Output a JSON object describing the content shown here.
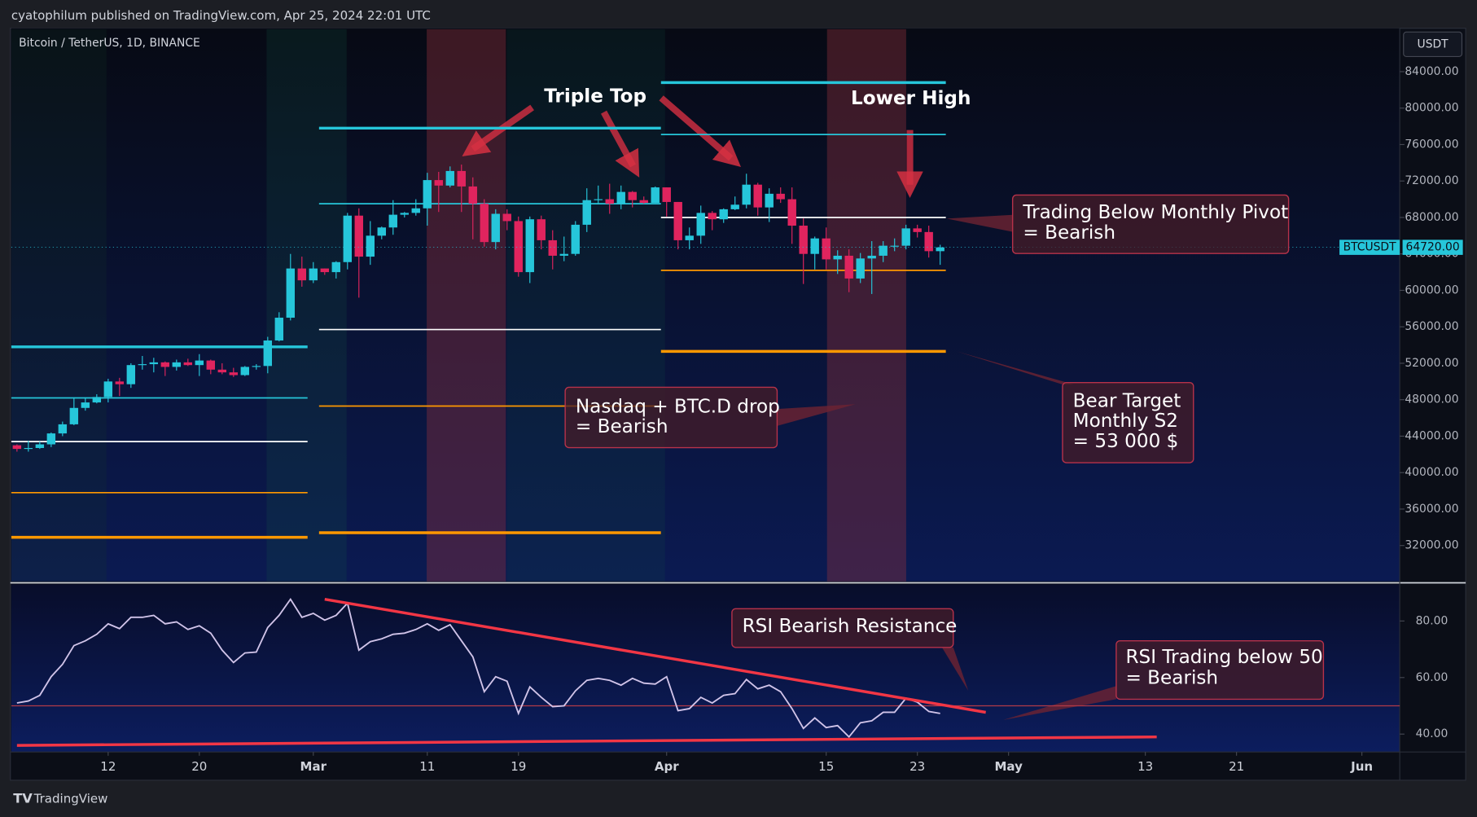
{
  "header": {
    "publisher": "cyatophilum published on TradingView.com, Apr 25, 2024 22:01 UTC",
    "footer": "TradingView"
  },
  "chart_data": [
    {
      "type": "candlestick",
      "title": "Bitcoin / TetherUS, 1D, BINANCE",
      "currency": "USDT",
      "price_tag": {
        "symbol": "BTCUSDT",
        "value": 64720,
        "label": "64720.00"
      },
      "up_color": "#26c6da",
      "down_color": "#e0245e",
      "x": [
        "02-04",
        "02-05",
        "02-06",
        "02-07",
        "02-08",
        "02-09",
        "02-10",
        "02-11",
        "02-12",
        "02-13",
        "02-14",
        "02-15",
        "02-16",
        "02-17",
        "02-18",
        "02-19",
        "02-20",
        "02-21",
        "02-22",
        "02-23",
        "02-24",
        "02-25",
        "02-26",
        "02-27",
        "02-28",
        "02-29",
        "03-01",
        "03-02",
        "03-03",
        "03-04",
        "03-05",
        "03-06",
        "03-07",
        "03-08",
        "03-09",
        "03-10",
        "03-11",
        "03-12",
        "03-13",
        "03-14",
        "03-15",
        "03-16",
        "03-17",
        "03-18",
        "03-19",
        "03-20",
        "03-21",
        "03-22",
        "03-23",
        "03-24",
        "03-25",
        "03-26",
        "03-27",
        "03-28",
        "03-29",
        "03-30",
        "03-31",
        "04-01",
        "04-02",
        "04-03",
        "04-04",
        "04-05",
        "04-06",
        "04-07",
        "04-08",
        "04-09",
        "04-10",
        "04-11",
        "04-12",
        "04-13",
        "04-14",
        "04-15",
        "04-16",
        "04-17",
        "04-18",
        "04-19",
        "04-20",
        "04-21",
        "04-22",
        "04-23",
        "04-24",
        "04-25"
      ],
      "open": [
        43000,
        42600,
        42700,
        43100,
        44300,
        45300,
        47100,
        47700,
        48300,
        50000,
        49700,
        51800,
        51900,
        52100,
        51600,
        52100,
        51800,
        52300,
        51300,
        51000,
        50700,
        51600,
        51700,
        54500,
        57000,
        62400,
        61100,
        62400,
        62000,
        63100,
        68200,
        63700,
        66000,
        66900,
        68300,
        68500,
        69000,
        72100,
        71500,
        73100,
        71400,
        69500,
        65300,
        68400,
        67600,
        62000,
        67800,
        65500,
        63800,
        64000,
        67200,
        69900,
        70000,
        69500,
        70800,
        69900,
        69600,
        71300,
        69700,
        65500,
        66000,
        68500,
        67800,
        68900,
        69400,
        71600,
        69100,
        70600,
        70000,
        67100,
        64000,
        65700,
        63400,
        63800,
        61300,
        63500,
        63800,
        64900,
        64900,
        66800,
        66400,
        64300
      ],
      "high": [
        43100,
        43500,
        43400,
        44400,
        45600,
        48200,
        48200,
        48600,
        50300,
        50400,
        52000,
        52800,
        52600,
        52200,
        52400,
        52500,
        53000,
        52400,
        52000,
        51500,
        51700,
        51900,
        54900,
        57600,
        64000,
        63700,
        63100,
        62400,
        63200,
        68500,
        69000,
        67600,
        67000,
        69900,
        68600,
        70000,
        72900,
        73000,
        73600,
        73800,
        72400,
        70000,
        68900,
        68900,
        68100,
        68100,
        68200,
        66600,
        65900,
        67600,
        71200,
        71500,
        71700,
        71500,
        70900,
        70300,
        71400,
        71300,
        69700,
        66900,
        69300,
        68700,
        69000,
        70300,
        72800,
        71800,
        71200,
        71300,
        71300,
        67900,
        65900,
        66900,
        64400,
        64500,
        64100,
        65400,
        65400,
        65700,
        67200,
        67200,
        67100,
        65000
      ],
      "low": [
        42300,
        42300,
        42600,
        42800,
        44000,
        45200,
        46800,
        47600,
        47700,
        48400,
        49300,
        51300,
        51000,
        50600,
        51200,
        51700,
        50600,
        50800,
        50800,
        50500,
        50600,
        51300,
        50900,
        54400,
        56700,
        60400,
        60800,
        61700,
        61300,
        62300,
        59200,
        62800,
        65600,
        66100,
        68000,
        68200,
        67100,
        68600,
        71300,
        68600,
        65600,
        64800,
        64500,
        66600,
        61500,
        60800,
        64500,
        62300,
        63200,
        63800,
        66400,
        69500,
        68400,
        68900,
        69100,
        69500,
        69600,
        68100,
        64500,
        64500,
        65100,
        66600,
        67400,
        68800,
        69000,
        68200,
        67500,
        69600,
        65100,
        60700,
        62300,
        62300,
        61800,
        59800,
        60800,
        59600,
        63100,
        64300,
        64500,
        65800,
        63600,
        62800
      ],
      "close": [
        42600,
        42700,
        43100,
        44300,
        45300,
        47100,
        47700,
        48300,
        50000,
        49700,
        51800,
        51900,
        52100,
        51600,
        52100,
        51800,
        52300,
        51300,
        51000,
        50700,
        51600,
        51700,
        54500,
        57000,
        62400,
        61100,
        62400,
        62000,
        63100,
        68200,
        63700,
        66000,
        66900,
        68300,
        68500,
        69000,
        72100,
        71500,
        73100,
        71400,
        69500,
        65300,
        68400,
        67600,
        62000,
        67800,
        65500,
        63800,
        64000,
        67200,
        69900,
        70000,
        69500,
        70800,
        69900,
        69600,
        71300,
        69700,
        65500,
        66000,
        68500,
        67800,
        68900,
        69400,
        71600,
        69100,
        70600,
        70000,
        67100,
        64000,
        65700,
        63400,
        63800,
        61300,
        63500,
        63800,
        64900,
        64900,
        66800,
        66400,
        64300,
        64720
      ],
      "ylim": [
        28060,
        88760
      ],
      "yticks": [
        {
          "value": 84000,
          "label": "84000.00"
        },
        {
          "value": 80000,
          "label": "80000.00"
        },
        {
          "value": 76000,
          "label": "76000.00"
        },
        {
          "value": 72000,
          "label": "72000.00"
        },
        {
          "value": 68000,
          "label": "68000.00"
        },
        {
          "value": 64000,
          "label": "64000.00"
        },
        {
          "value": 60000,
          "label": "60000.00"
        },
        {
          "value": 56000,
          "label": "56000.00"
        },
        {
          "value": 52000,
          "label": "52000.00"
        },
        {
          "value": 48000,
          "label": "48000.00"
        },
        {
          "value": 44000,
          "label": "44000.00"
        },
        {
          "value": 40000,
          "label": "40000.00"
        },
        {
          "value": 36000,
          "label": "36000.00"
        },
        {
          "value": 32000,
          "label": "32000.00"
        }
      ],
      "level_colors": [
        "#26c6da",
        "#26c6da",
        "#ffffff",
        "#ff9800",
        "#ff9800"
      ],
      "levels": [
        {
          "from": "02-04",
          "to": "02-29",
          "values": [
            53800,
            48200,
            43400,
            37800,
            32900
          ]
        },
        {
          "from": "03-02",
          "to": "03-31",
          "values": [
            77800,
            69500,
            55700,
            47300,
            33400
          ]
        },
        {
          "from": "04-01",
          "to": "04-25",
          "values": [
            82800,
            77100,
            68000,
            62200,
            53300
          ]
        }
      ],
      "annotations": [
        {
          "lines": [
            "Triple Top"
          ]
        },
        {
          "lines": [
            "Lower High"
          ]
        },
        {
          "lines": [
            "Trading Below Monthly Pivot",
            "= Bearish"
          ]
        },
        {
          "lines": [
            "Nasdaq + BTC.D drop",
            "= Bearish"
          ]
        },
        {
          "lines": [
            "Bear Target",
            "Monthly S2",
            "= 53 000 $"
          ]
        }
      ]
    },
    {
      "type": "line",
      "name": "RSI",
      "color": "#d1c4e9",
      "x": [
        "02-04",
        "02-05",
        "02-06",
        "02-07",
        "02-08",
        "02-09",
        "02-10",
        "02-11",
        "02-12",
        "02-13",
        "02-14",
        "02-15",
        "02-16",
        "02-17",
        "02-18",
        "02-19",
        "02-20",
        "02-21",
        "02-22",
        "02-23",
        "02-24",
        "02-25",
        "02-26",
        "02-27",
        "02-28",
        "02-29",
        "03-01",
        "03-02",
        "03-03",
        "03-04",
        "03-05",
        "03-06",
        "03-07",
        "03-08",
        "03-09",
        "03-10",
        "03-11",
        "03-12",
        "03-13",
        "03-14",
        "03-15",
        "03-16",
        "03-17",
        "03-18",
        "03-19",
        "03-20",
        "03-21",
        "03-22",
        "03-23",
        "03-24",
        "03-25",
        "03-26",
        "03-27",
        "03-28",
        "03-29",
        "03-30",
        "03-31",
        "04-01",
        "04-02",
        "04-03",
        "04-04",
        "04-05",
        "04-06",
        "04-07",
        "04-08",
        "04-09",
        "04-10",
        "04-11",
        "04-12",
        "04-13",
        "04-14",
        "04-15",
        "04-16",
        "04-17",
        "04-18",
        "04-19",
        "04-20",
        "04-21",
        "04-22",
        "04-23",
        "04-24",
        "04-25"
      ],
      "values": [
        51,
        51.7,
        53.7,
        60.3,
        64.7,
        71.3,
        73,
        75.3,
        79,
        77.3,
        81.3,
        81.3,
        82,
        79,
        79.7,
        77,
        78.3,
        75.7,
        69.7,
        65.3,
        68.7,
        69,
        77.7,
        82,
        87.7,
        81.3,
        82.7,
        80.3,
        82,
        86.3,
        69.7,
        72.7,
        73.7,
        75.3,
        75.7,
        77,
        79,
        76.7,
        78.7,
        73,
        67.3,
        55,
        60.3,
        58.7,
        47.3,
        56.7,
        53,
        49.7,
        50,
        55.3,
        59,
        59.7,
        59,
        57.3,
        59.7,
        58,
        57.7,
        60.3,
        48.3,
        49,
        53,
        51,
        53.7,
        54.3,
        59.3,
        56,
        57.3,
        55,
        49,
        42,
        45.7,
        42.3,
        43,
        39,
        44,
        44.7,
        47.7,
        47.7,
        52.7,
        51.3,
        48,
        47.3
      ],
      "ylim": [
        33.67,
        93
      ],
      "yticks": [
        {
          "value": 80,
          "label": "80.00"
        },
        {
          "value": 60,
          "label": "60.00"
        },
        {
          "value": 40,
          "label": "40.00"
        }
      ],
      "reference": 50,
      "trendline_color": "#f23645",
      "trendlines": [
        {
          "x": [
            "03-02",
            "04-29"
          ],
          "values": [
            87.7,
            47.7
          ]
        },
        {
          "x": [
            "02-04",
            "05-14"
          ],
          "values": [
            36,
            39
          ]
        }
      ],
      "xticks": [
        {
          "value": "02-12",
          "label": "12"
        },
        {
          "value": "02-20",
          "label": "20"
        },
        {
          "value": "03-01",
          "label": "Mar"
        },
        {
          "value": "03-11",
          "label": "11"
        },
        {
          "value": "03-19",
          "label": "19"
        },
        {
          "value": "04-01",
          "label": "Apr"
        },
        {
          "value": "04-15",
          "label": "15"
        },
        {
          "value": "04-23",
          "label": "23"
        },
        {
          "value": "05-01",
          "label": "May"
        },
        {
          "value": "05-13",
          "label": "13"
        },
        {
          "value": "05-21",
          "label": "21"
        },
        {
          "value": "06-01",
          "label": "Jun"
        }
      ],
      "annotations": [
        {
          "lines": [
            "RSI Bearish Resistance"
          ]
        },
        {
          "lines": [
            "RSI Trading below 50",
            "= Bearish"
          ]
        }
      ]
    }
  ]
}
